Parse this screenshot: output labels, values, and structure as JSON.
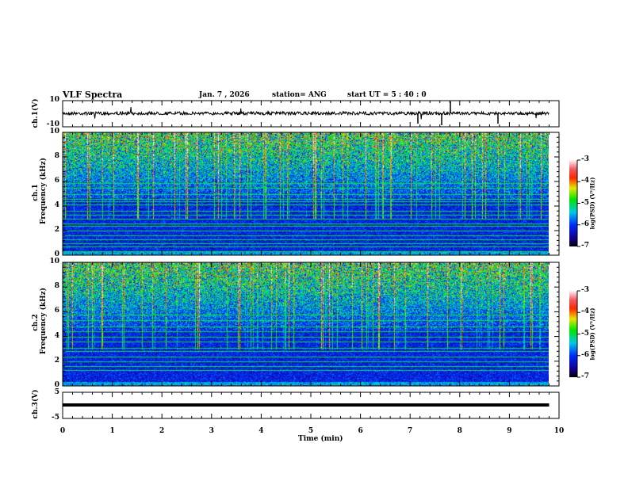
{
  "header": {
    "title": "VLF Spectra",
    "date": "Jan. 7 , 2026",
    "station": "station= ANG",
    "start_ut": "start  UT =   5  : 40 : 0"
  },
  "chart_data": [
    {
      "type": "line",
      "name": "ch1",
      "ylabel": "ch.1(V)",
      "ylim": [
        -10,
        10
      ],
      "yticks": [
        "10",
        "-10"
      ],
      "baseline": 0,
      "xlim": [
        0,
        10
      ],
      "data_end_min": 9.8
    },
    {
      "type": "heatmap",
      "name": "ch1-spectrogram",
      "ylabel": "ch.1\nFrequency (kHz)",
      "ylabel_lines": [
        "ch.1",
        "Frequency (kHz)"
      ],
      "ylim": [
        0,
        10
      ],
      "yticks": [
        "0",
        "2",
        "4",
        "6",
        "8",
        "10"
      ],
      "xlim": [
        0,
        10
      ],
      "data_end_min": 9.8,
      "colorbar": {
        "label": "log(PSD) (V²/Hz)",
        "range": [
          -7,
          -3
        ],
        "ticks": [
          "-3",
          "-4",
          "-5",
          "-6",
          "-7"
        ]
      },
      "bands_khz": [
        0.3,
        0.7,
        1.0,
        1.3,
        1.6,
        2.0,
        2.4,
        2.6,
        3.0,
        3.3,
        3.6,
        4.1,
        4.4,
        4.6,
        5.0,
        5.5,
        5.9
      ]
    },
    {
      "type": "heatmap",
      "name": "ch2-spectrogram",
      "ylabel_lines": [
        "ch.2",
        "Frequency (kHz)"
      ],
      "ylim": [
        0,
        10
      ],
      "yticks": [
        "0",
        "2",
        "4",
        "6",
        "8",
        "10"
      ],
      "xlim": [
        0,
        10
      ],
      "data_end_min": 9.8,
      "colorbar": {
        "label": "log(PSD) (V²/Hz)",
        "range": [
          -7,
          -3
        ],
        "ticks": [
          "-3",
          "-4",
          "-5",
          "-6",
          "-7"
        ]
      },
      "bands_khz": [
        1.3,
        1.6,
        2.0,
        2.4,
        2.8,
        3.1,
        3.6,
        4.0,
        4.4,
        4.8,
        5.3,
        5.8
      ]
    },
    {
      "type": "line",
      "name": "ch3",
      "ylabel": "ch.3(V)",
      "ylim": [
        -5,
        5
      ],
      "yticks": [
        "5",
        "-5"
      ],
      "constant_value": 0,
      "xlim": [
        0,
        10
      ],
      "data_end_min": 9.8,
      "xlabel": "Time  (min)",
      "xticks": [
        "0",
        "1",
        "2",
        "3",
        "4",
        "5",
        "6",
        "7",
        "8",
        "9",
        "10"
      ]
    }
  ]
}
